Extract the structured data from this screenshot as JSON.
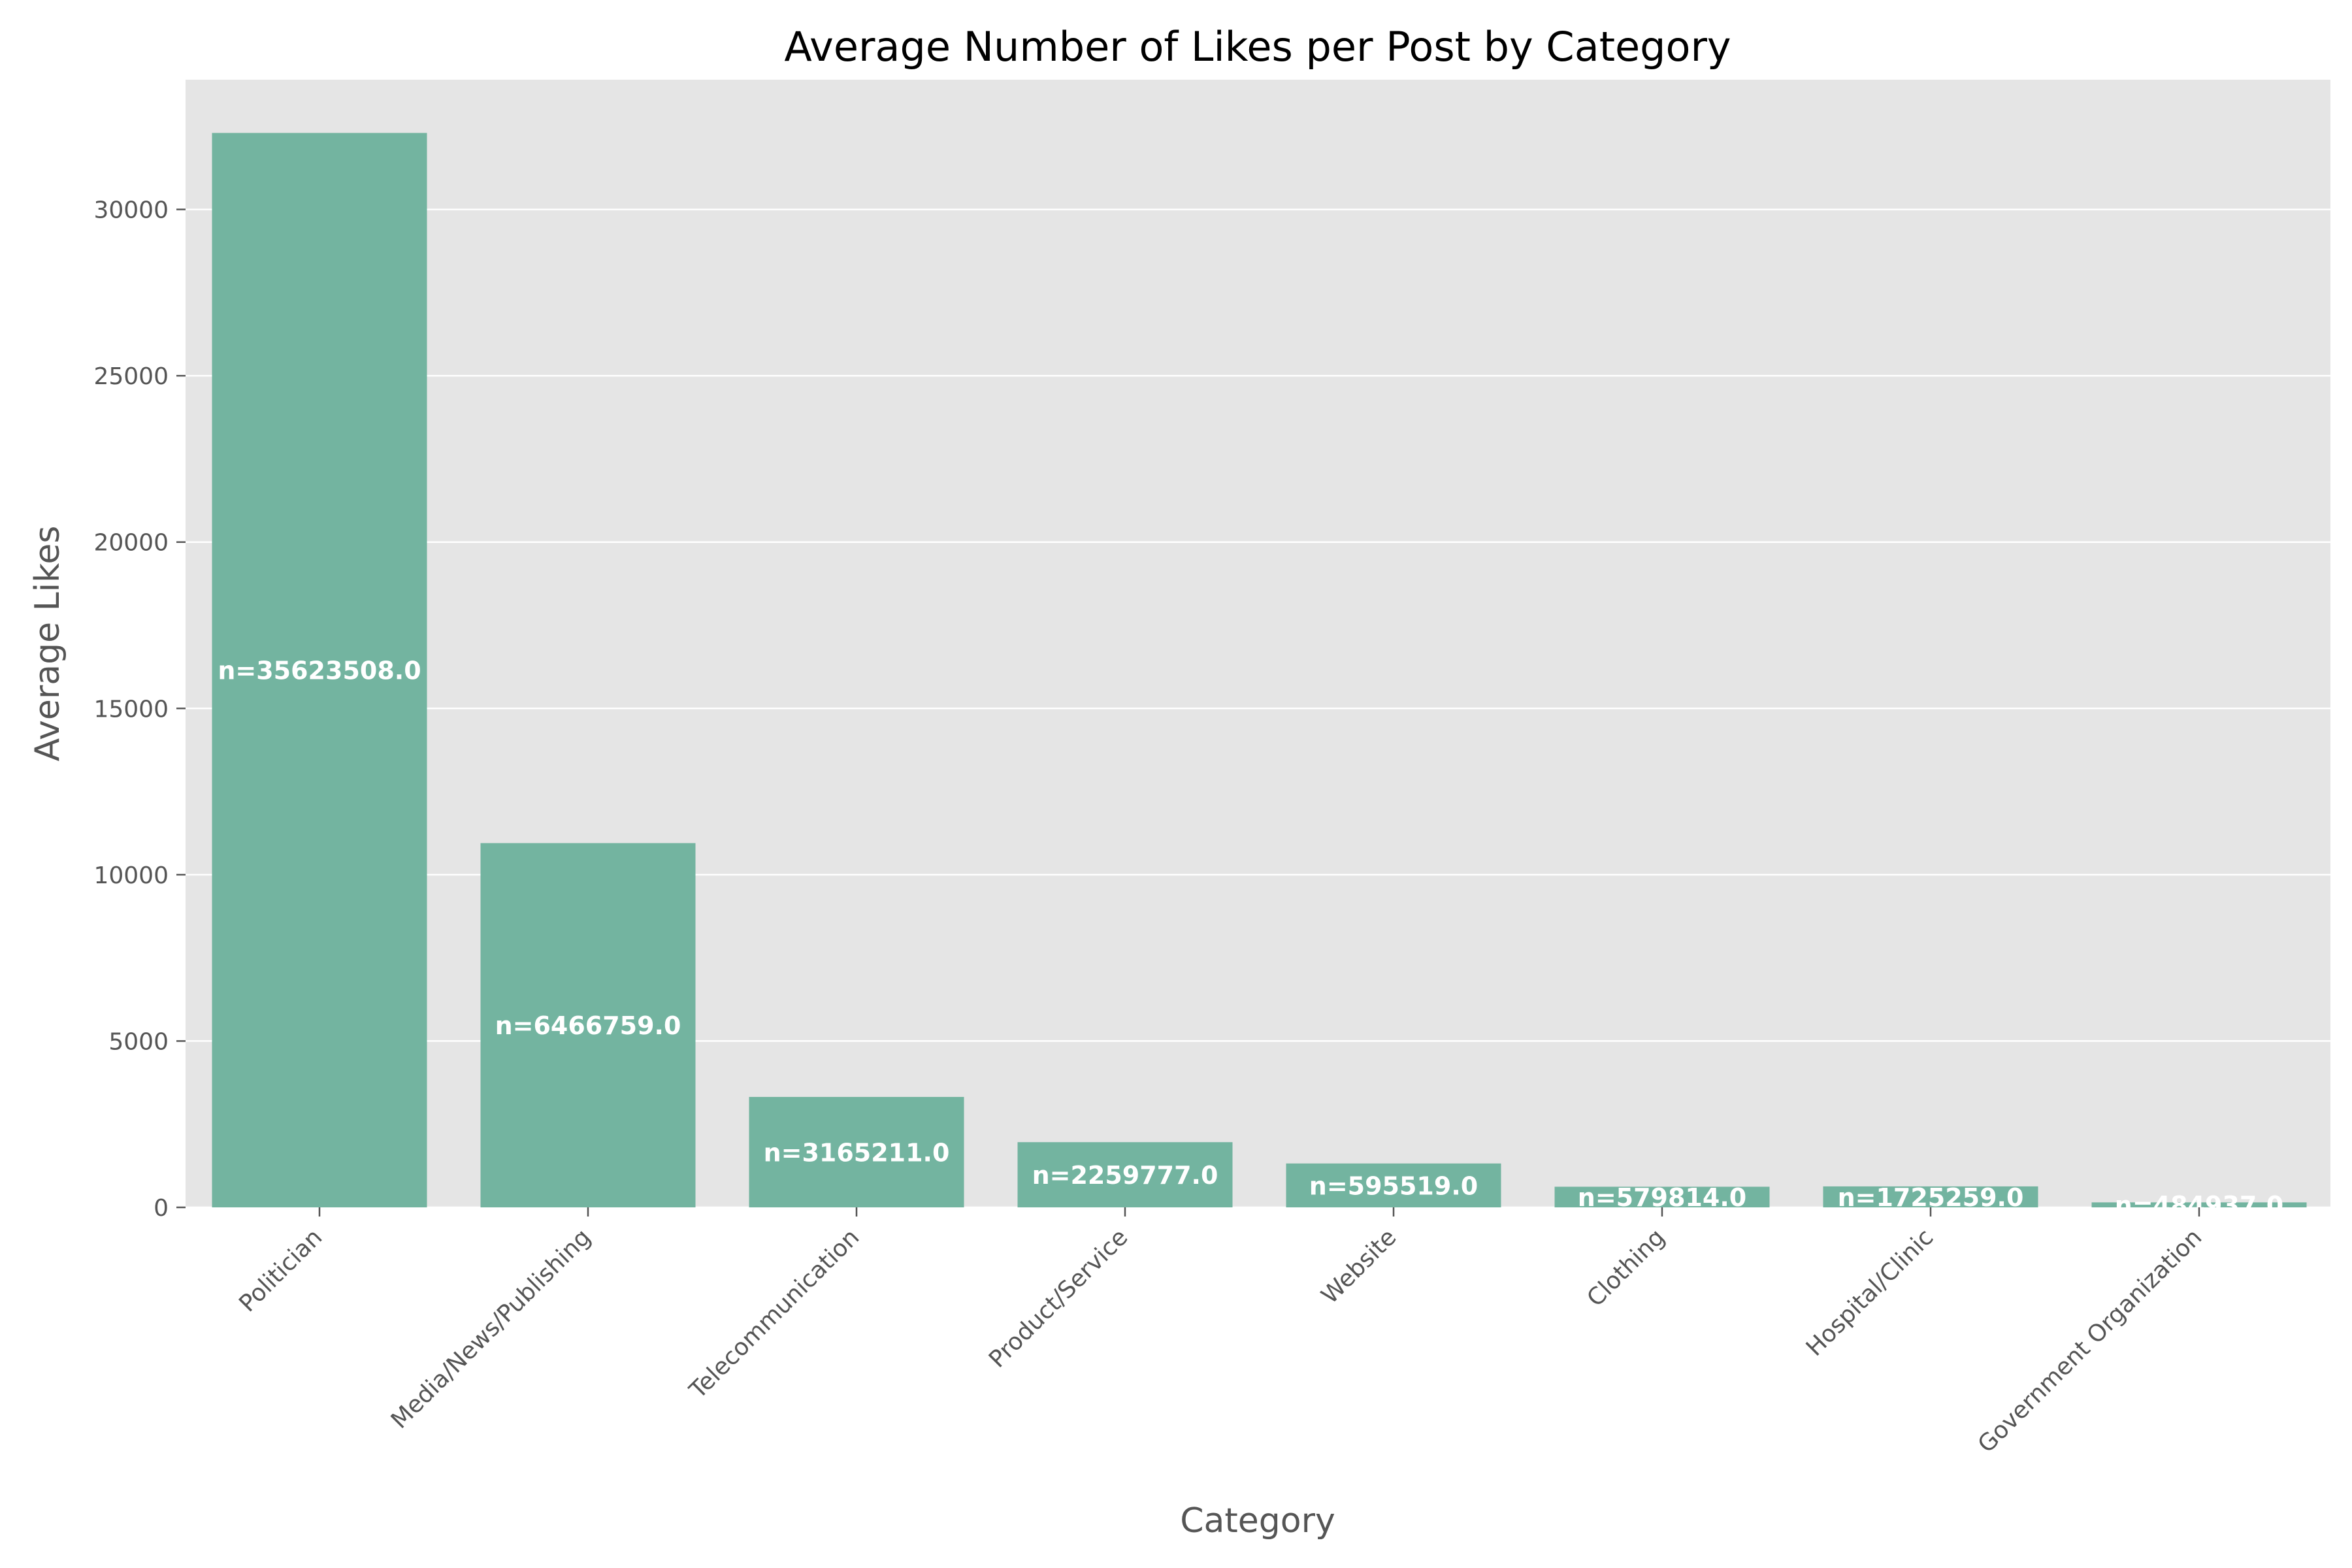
{
  "chart_data": {
    "type": "bar",
    "title": "Average Number of Likes per Post by Category",
    "xlabel": "Category",
    "ylabel": "Average Likes",
    "categories": [
      "Politician",
      "Media/News/Publishing",
      "Telecommunication",
      "Product/Service",
      "Website",
      "Clothing",
      "Hospital/Clinic",
      "Government Organization"
    ],
    "values": [
      32300,
      10950,
      3320,
      1960,
      1320,
      620,
      630,
      150
    ],
    "bar_labels": [
      "n=35623508.0",
      "n=6466759.0",
      "n=3165211.0",
      "n=2259777.0",
      "n=595519.0",
      "n=579814.0",
      "n=1725259.0",
      "n=484937.0"
    ],
    "yticks": [
      0,
      5000,
      10000,
      15000,
      20000,
      25000,
      30000
    ],
    "ylim": [
      0,
      33900
    ],
    "grid": true,
    "colors": {
      "bar": "#73b4a0",
      "plot_background": "#e5e5e5",
      "grid": "#ffffff"
    }
  }
}
